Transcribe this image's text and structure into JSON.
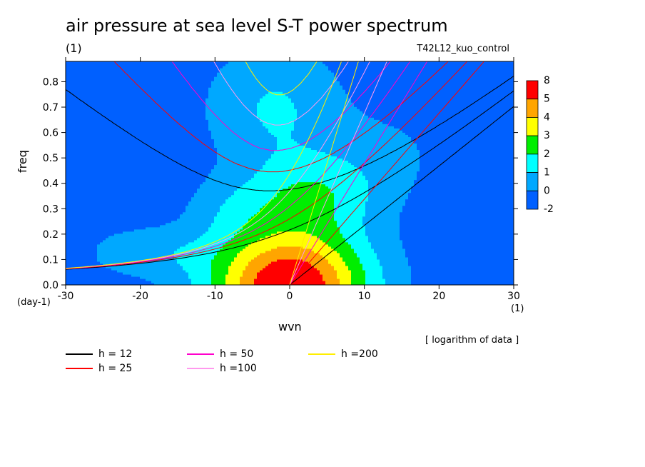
{
  "header": {
    "title": "air pressure at sea level S-T power spectrum",
    "subtitle": "(1)",
    "run_name": "T42L12_kuo_control",
    "note": "[ logarithm of data ]"
  },
  "chart_data": {
    "type": "heatmap",
    "title": "air pressure at sea level S-T power spectrum",
    "xlabel": "wvn",
    "ylabel": "freq",
    "x_unit": "(1)",
    "y_unit": "(day-1)",
    "xlim": [
      -30,
      30
    ],
    "ylim": [
      0,
      0.88
    ],
    "x_ticks": [
      "-30",
      "-20",
      "-10",
      "0",
      "10",
      "20",
      "30"
    ],
    "x_tick_values": [
      -30,
      -20,
      -10,
      0,
      10,
      20,
      30
    ],
    "y_ticks": [
      "0.0",
      "0.1",
      "0.2",
      "0.3",
      "0.4",
      "0.5",
      "0.6",
      "0.7",
      "0.8"
    ],
    "y_tick_values": [
      0,
      0.1,
      0.2,
      0.3,
      0.4,
      0.5,
      0.6,
      0.7,
      0.8
    ],
    "colorbar": {
      "labels": [
        "8",
        "5",
        "4",
        "3",
        "2",
        "1",
        "0",
        "-2"
      ],
      "levels": [
        -2,
        0,
        1,
        2,
        3,
        4,
        5,
        8
      ],
      "colors": [
        "#0060ff",
        "#00a8ff",
        "#00ffff",
        "#00ee00",
        "#ffff00",
        "#ffa500",
        "#ff0000"
      ]
    },
    "field_peak": {
      "wvn": 0,
      "freq": 0.0,
      "value": 5.8
    },
    "dispersion_curves": [
      {
        "name": "h = 12",
        "h": 12,
        "color": "#000000"
      },
      {
        "name": "h = 25",
        "h": 25,
        "color": "#ff0000"
      },
      {
        "name": "h = 50",
        "h": 50,
        "color": "#ff00cc"
      },
      {
        "name": "h =100",
        "h": 100,
        "color": "#ff99ee"
      },
      {
        "name": "h =200",
        "h": 200,
        "color": "#ffee00"
      }
    ]
  }
}
